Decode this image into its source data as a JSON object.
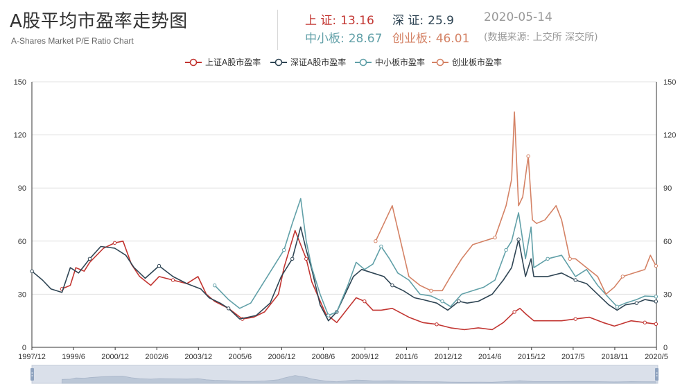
{
  "header": {
    "title": "A股平均市盈率走势图",
    "subtitle": "A-Shares Market P/E Ratio Chart",
    "stats": {
      "sh": {
        "label": "上 证:",
        "value": "13.16"
      },
      "sz": {
        "label": "深 证:",
        "value": "25.9"
      },
      "zx": {
        "label": "中小板:",
        "value": "28.67"
      },
      "cy": {
        "label": "创业板:",
        "value": "46.01"
      }
    },
    "date": "2020-05-14",
    "source": "(数据来源: 上交所 深交所)"
  },
  "chart_data": {
    "type": "line",
    "x_ticks": [
      "1997/12",
      "1999/6",
      "2000/12",
      "2002/6",
      "2003/12",
      "2005/6",
      "2006/12",
      "2008/6",
      "2009/12",
      "2011/6",
      "2012/12",
      "2014/6",
      "2015/12",
      "2017/5",
      "2018/11",
      "2020/5"
    ],
    "y_ticks": [
      0,
      30,
      60,
      90,
      120,
      150
    ],
    "ylim": [
      0,
      150
    ],
    "xlim": [
      1997.917,
      2020.417
    ],
    "legend_position": "top-center",
    "colors": {
      "sh": "#c23531",
      "sz": "#2f4554",
      "zx": "#61a0a8",
      "cy": "#d48265"
    },
    "series": [
      {
        "key": "sh",
        "name": "上证A股市盈率",
        "x": [
          1999.0,
          1999.3,
          1999.5,
          1999.8,
          2000.0,
          2000.5,
          2000.9,
          2001.2,
          2001.5,
          2001.8,
          2002.2,
          2002.5,
          2003.0,
          2003.5,
          2003.9,
          2004.2,
          2004.5,
          2005.0,
          2005.5,
          2005.9,
          2006.3,
          2006.8,
          2007.0,
          2007.4,
          2007.8,
          2008.0,
          2008.5,
          2008.9,
          2009.3,
          2009.6,
          2009.9,
          2010.2,
          2010.5,
          2010.9,
          2011.5,
          2012.0,
          2012.5,
          2013.0,
          2013.5,
          2014.0,
          2014.5,
          2014.9,
          2015.3,
          2015.5,
          2015.7,
          2016.0,
          2016.5,
          2017.0,
          2017.5,
          2018.0,
          2018.5,
          2018.9,
          2019.3,
          2019.5,
          2020.0,
          2020.4
        ],
        "y": [
          33,
          35,
          45,
          43,
          48,
          56,
          59,
          60,
          47,
          40,
          35,
          40,
          38,
          36,
          40,
          30,
          26,
          22,
          16,
          17,
          20,
          30,
          45,
          66,
          50,
          37,
          19,
          14,
          22,
          28,
          26,
          21,
          21,
          22,
          17,
          14,
          13,
          11,
          10,
          11,
          10,
          14,
          20,
          22,
          19,
          15,
          15,
          15,
          16,
          17,
          14,
          12,
          14,
          15,
          14,
          13.16
        ]
      },
      {
        "key": "sz",
        "name": "深证A股市盈率",
        "x": [
          1997.92,
          1998.3,
          1998.6,
          1999.0,
          1999.3,
          1999.6,
          2000.0,
          2000.4,
          2000.9,
          2001.3,
          2001.6,
          2002.0,
          2002.5,
          2003.0,
          2003.5,
          2004.0,
          2004.3,
          2004.7,
          2005.0,
          2005.4,
          2005.7,
          2006.0,
          2006.5,
          2006.9,
          2007.3,
          2007.6,
          2007.8,
          2008.0,
          2008.3,
          2008.6,
          2008.9,
          2009.2,
          2009.5,
          2009.8,
          2010.2,
          2010.6,
          2010.9,
          2011.3,
          2011.7,
          2012.0,
          2012.5,
          2012.9,
          2013.3,
          2013.6,
          2014.0,
          2014.5,
          2014.9,
          2015.2,
          2015.45,
          2015.7,
          2015.9,
          2016.0,
          2016.5,
          2017.0,
          2017.5,
          2017.9,
          2018.3,
          2018.7,
          2019.0,
          2019.3,
          2019.7,
          2020.0,
          2020.4
        ],
        "y": [
          43,
          38,
          33,
          31,
          45,
          42,
          50,
          57,
          56,
          52,
          45,
          39,
          46,
          40,
          36,
          33,
          28,
          25,
          22,
          16,
          17,
          18,
          25,
          40,
          50,
          68,
          55,
          44,
          24,
          15,
          20,
          30,
          40,
          44,
          42,
          40,
          35,
          32,
          28,
          27,
          25,
          21,
          26,
          25,
          26,
          30,
          38,
          45,
          61,
          40,
          50,
          40,
          40,
          42,
          38,
          36,
          30,
          24,
          21,
          24,
          25,
          27,
          25.9
        ]
      },
      {
        "key": "zx",
        "name": "中小板市盈率",
        "x": [
          2004.5,
          2005.0,
          2005.4,
          2005.8,
          2006.2,
          2006.6,
          2007.0,
          2007.3,
          2007.6,
          2007.8,
          2008.0,
          2008.3,
          2008.6,
          2008.9,
          2009.3,
          2009.6,
          2009.9,
          2010.2,
          2010.5,
          2010.8,
          2011.1,
          2011.5,
          2011.9,
          2012.3,
          2012.7,
          2013.0,
          2013.4,
          2013.8,
          2014.2,
          2014.6,
          2015.0,
          2015.2,
          2015.45,
          2015.7,
          2015.9,
          2016.0,
          2016.5,
          2017.0,
          2017.5,
          2017.9,
          2018.3,
          2018.7,
          2019.0,
          2019.3,
          2019.7,
          2020.0,
          2020.4
        ],
        "y": [
          35,
          27,
          22,
          25,
          35,
          45,
          55,
          70,
          84,
          60,
          45,
          30,
          18,
          20,
          35,
          48,
          44,
          47,
          57,
          50,
          42,
          38,
          30,
          29,
          26,
          23,
          30,
          32,
          34,
          38,
          55,
          60,
          76,
          50,
          68,
          45,
          50,
          52,
          40,
          44,
          35,
          28,
          23,
          25,
          27,
          29,
          28.67
        ]
      },
      {
        "key": "cy",
        "name": "创业板市盈率",
        "x": [
          2010.3,
          2010.6,
          2010.9,
          2011.2,
          2011.5,
          2011.9,
          2012.3,
          2012.7,
          2013.0,
          2013.4,
          2013.8,
          2014.2,
          2014.6,
          2015.0,
          2015.2,
          2015.3,
          2015.45,
          2015.6,
          2015.8,
          2015.95,
          2016.1,
          2016.4,
          2016.8,
          2017.0,
          2017.3,
          2017.5,
          2017.9,
          2018.3,
          2018.6,
          2018.9,
          2019.2,
          2019.6,
          2020.0,
          2020.2,
          2020.4
        ],
        "y": [
          60,
          70,
          80,
          60,
          40,
          35,
          32,
          32,
          40,
          50,
          58,
          60,
          62,
          80,
          95,
          133,
          80,
          85,
          108,
          72,
          70,
          72,
          80,
          72,
          50,
          50,
          45,
          40,
          30,
          34,
          40,
          42,
          44,
          52,
          46.01
        ]
      }
    ]
  }
}
